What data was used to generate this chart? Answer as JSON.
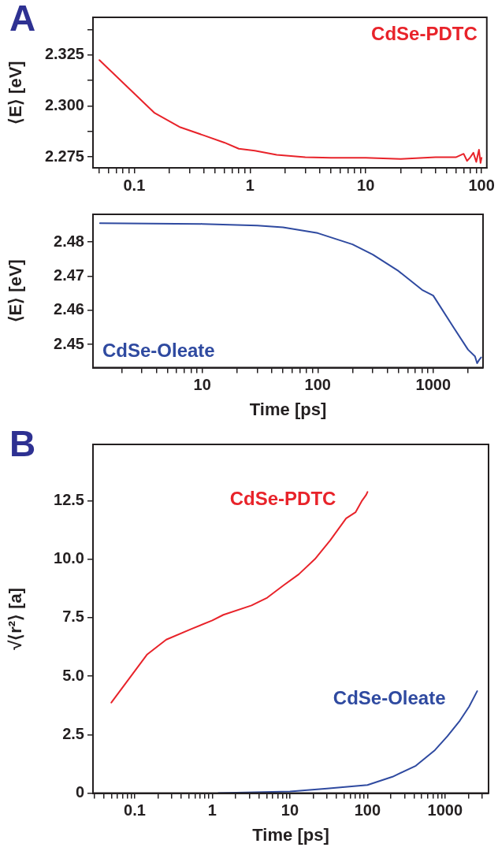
{
  "chart_data": [
    {
      "type": "line",
      "ylabel": "⟨E⟩ [eV]",
      "annotations": [
        "A"
      ],
      "log": "x",
      "grid": false,
      "marker": "none",
      "legend": "top right",
      "xlim": [
        0.044,
        111
      ],
      "xticks": [
        {
          "value": 0.05,
          "label": null
        },
        {
          "value": 0.06,
          "label": null
        },
        {
          "value": 0.07,
          "label": null
        },
        {
          "value": 0.08,
          "label": null
        },
        {
          "value": 0.09,
          "label": null
        },
        0.1,
        {
          "value": 0.2,
          "label": null
        },
        {
          "value": 0.3,
          "label": null
        },
        {
          "value": 0.4,
          "label": null
        },
        {
          "value": 0.5,
          "label": null
        },
        {
          "value": 0.6,
          "label": null
        },
        {
          "value": 0.7,
          "label": null
        },
        {
          "value": 0.8,
          "label": null
        },
        {
          "value": 0.9,
          "label": null
        },
        1,
        {
          "value": 2,
          "label": null
        },
        {
          "value": 3,
          "label": null
        },
        {
          "value": 4,
          "label": null
        },
        {
          "value": 5,
          "label": null
        },
        {
          "value": 6,
          "label": null
        },
        {
          "value": 7,
          "label": null
        },
        {
          "value": 8,
          "label": null
        },
        {
          "value": 9,
          "label": null
        },
        10,
        {
          "value": 20,
          "label": null
        },
        {
          "value": 30,
          "label": null
        },
        {
          "value": 40,
          "label": null
        },
        {
          "value": 50,
          "label": null
        },
        {
          "value": 60,
          "label": null
        },
        {
          "value": 70,
          "label": null
        },
        {
          "value": 80,
          "label": null
        },
        {
          "value": 90,
          "label": null
        },
        100
      ],
      "ylim": [
        2.2696,
        2.3435
      ],
      "yticks": [
        2.275,
        {
          "value": 2.2875,
          "label": null
        },
        {
          "value": 2.3,
          "label": "2.300"
        },
        {
          "value": 2.3125,
          "label": null
        },
        2.325,
        {
          "value": 2.3375,
          "label": null
        }
      ],
      "series": [
        {
          "name": "CdSe-PDTC",
          "color": "#e8232a",
          "x": [
            0.05,
            0.15,
            0.25,
            0.4,
            0.6,
            0.8,
            1.1,
            1.7,
            3,
            5,
            10,
            20,
            40,
            60,
            70,
            75,
            80,
            85,
            90,
            95,
            98,
            100
          ],
          "values": [
            2.3225,
            2.2965,
            2.2895,
            2.2855,
            2.282,
            2.279,
            2.278,
            2.276,
            2.2748,
            2.2745,
            2.2745,
            2.274,
            2.2748,
            2.2748,
            2.2765,
            2.273,
            2.2748,
            2.277,
            2.2725,
            2.2785,
            2.272,
            2.2745
          ]
        }
      ]
    },
    {
      "type": "line",
      "xlabel": "Time [ps]",
      "ylabel": "⟨E⟩ [eV]",
      "log": "x",
      "grid": false,
      "marker": "none",
      "legend": "bottom left",
      "xlim": [
        1.13,
        2700
      ],
      "xticks": [
        {
          "value": 2,
          "label": null
        },
        {
          "value": 3,
          "label": null
        },
        {
          "value": 4,
          "label": null
        },
        {
          "value": 5,
          "label": null
        },
        {
          "value": 6,
          "label": null
        },
        {
          "value": 7,
          "label": null
        },
        {
          "value": 8,
          "label": null
        },
        {
          "value": 9,
          "label": null
        },
        10,
        {
          "value": 20,
          "label": null
        },
        {
          "value": 30,
          "label": null
        },
        {
          "value": 40,
          "label": null
        },
        {
          "value": 50,
          "label": null
        },
        {
          "value": 60,
          "label": null
        },
        {
          "value": 70,
          "label": null
        },
        {
          "value": 80,
          "label": null
        },
        {
          "value": 90,
          "label": null
        },
        100,
        {
          "value": 200,
          "label": null
        },
        {
          "value": 300,
          "label": null
        },
        {
          "value": 400,
          "label": null
        },
        {
          "value": 500,
          "label": null
        },
        {
          "value": 600,
          "label": null
        },
        {
          "value": 700,
          "label": null
        },
        {
          "value": 800,
          "label": null
        },
        {
          "value": 900,
          "label": null
        },
        1000,
        {
          "value": 2000,
          "label": null
        }
      ],
      "ylim": [
        2.4432,
        2.4881
      ],
      "yticks": [
        2.45,
        2.46,
        2.47,
        2.48
      ],
      "series": [
        {
          "name": "CdSe-Oleate",
          "color": "#2f4aa0",
          "x": [
            1.3,
            10,
            30,
            50,
            100,
            200,
            300,
            500,
            800,
            1000,
            1500,
            2000,
            2300,
            2400,
            2500,
            2600
          ],
          "values": [
            2.4855,
            2.4853,
            2.4848,
            2.4843,
            2.4826,
            2.4793,
            2.4763,
            2.4715,
            2.466,
            2.4643,
            2.455,
            2.4485,
            2.4465,
            2.4445,
            2.4455,
            2.4462
          ]
        }
      ]
    },
    {
      "type": "line",
      "xlabel": "Time [ps]",
      "ylabel": "√⟨r²⟩ [a]",
      "annotations": [
        "B"
      ],
      "log": "x",
      "grid": false,
      "marker": "none",
      "legend": false,
      "xlim": [
        0.029,
        3630
      ],
      "xticks": [
        {
          "value": 0.03,
          "label": null
        },
        {
          "value": 0.04,
          "label": null
        },
        {
          "value": 0.05,
          "label": null
        },
        {
          "value": 0.06,
          "label": null
        },
        {
          "value": 0.07,
          "label": null
        },
        {
          "value": 0.08,
          "label": null
        },
        {
          "value": 0.09,
          "label": null
        },
        0.1,
        {
          "value": 0.2,
          "label": null
        },
        {
          "value": 0.3,
          "label": null
        },
        {
          "value": 0.4,
          "label": null
        },
        {
          "value": 0.5,
          "label": null
        },
        {
          "value": 0.6,
          "label": null
        },
        {
          "value": 0.7,
          "label": null
        },
        {
          "value": 0.8,
          "label": null
        },
        {
          "value": 0.9,
          "label": null
        },
        1,
        {
          "value": 2,
          "label": null
        },
        {
          "value": 3,
          "label": null
        },
        {
          "value": 4,
          "label": null
        },
        {
          "value": 5,
          "label": null
        },
        {
          "value": 6,
          "label": null
        },
        {
          "value": 7,
          "label": null
        },
        {
          "value": 8,
          "label": null
        },
        {
          "value": 9,
          "label": null
        },
        10,
        {
          "value": 20,
          "label": null
        },
        {
          "value": 30,
          "label": null
        },
        {
          "value": 40,
          "label": null
        },
        {
          "value": 50,
          "label": null
        },
        {
          "value": 60,
          "label": null
        },
        {
          "value": 70,
          "label": null
        },
        {
          "value": 80,
          "label": null
        },
        {
          "value": 90,
          "label": null
        },
        100,
        {
          "value": 200,
          "label": null
        },
        {
          "value": 300,
          "label": null
        },
        {
          "value": 400,
          "label": null
        },
        {
          "value": 500,
          "label": null
        },
        {
          "value": 600,
          "label": null
        },
        {
          "value": 700,
          "label": null
        },
        {
          "value": 800,
          "label": null
        },
        {
          "value": 900,
          "label": null
        },
        1000,
        {
          "value": 2000,
          "label": null
        },
        {
          "value": 3000,
          "label": null
        }
      ],
      "ylim": [
        0,
        14.9
      ],
      "yticks": [
        0,
        2.5,
        {
          "value": 5,
          "label": "5.0"
        },
        7.5,
        {
          "value": 10,
          "label": "10.0"
        },
        12.5
      ],
      "series": [
        {
          "name": "CdSe-PDTC",
          "color": "#e8232a",
          "x": [
            0.05,
            0.145,
            0.255,
            0.54,
            1,
            1.39,
            3.2,
            5.1,
            8.3,
            13,
            21,
            33,
            53,
            70,
            84,
            96,
            100
          ],
          "values": [
            3.87,
            5.93,
            6.56,
            7.02,
            7.38,
            7.62,
            8.02,
            8.35,
            8.88,
            9.35,
            10.0,
            10.8,
            11.74,
            12.0,
            12.47,
            12.74,
            12.87
          ]
        },
        {
          "name": "CdSe-Oleate",
          "color": "#2f4aa0",
          "x": [
            1.2,
            10,
            30,
            100,
            210,
            420,
            740,
            1070,
            1550,
            2040,
            2590
          ],
          "values": [
            0,
            0.07,
            0.2,
            0.35,
            0.7,
            1.17,
            1.84,
            2.43,
            3.1,
            3.7,
            4.36
          ]
        }
      ]
    }
  ]
}
